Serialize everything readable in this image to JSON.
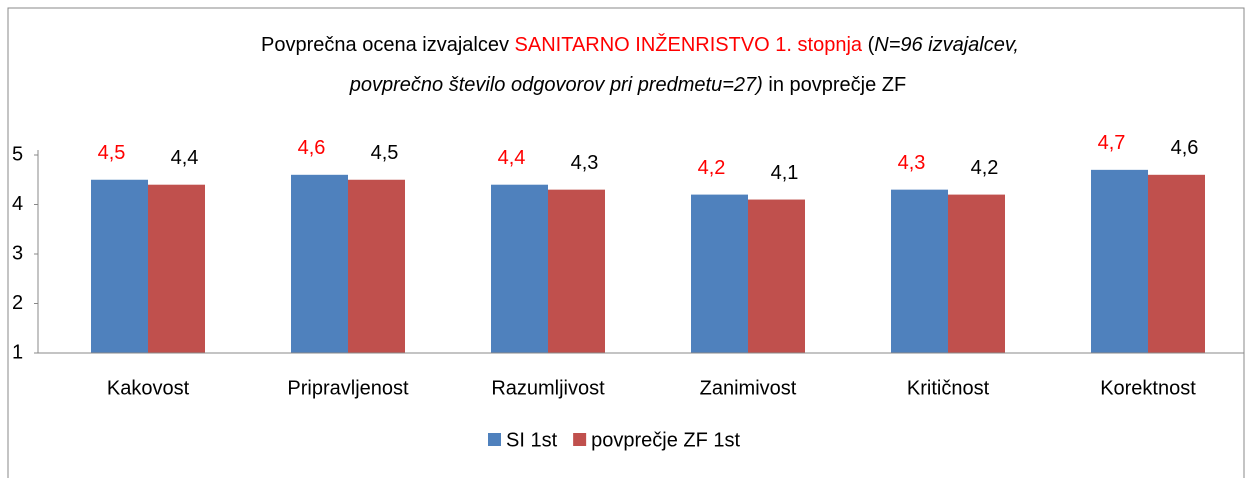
{
  "chart_data": {
    "type": "bar",
    "title": [
      [
        "Povprečna ocena izvajalcev ",
        "SANITARNO INŽENRISTVO 1. stopnja",
        " (",
        "N=96 izvajalcev,"
      ],
      [
        "povprečno število odgovorov pri predmetu=27)",
        " in povprečje ZF"
      ]
    ],
    "categories": [
      "Kakovost",
      "Pripravljenost",
      "Razumljivost",
      "Zanimivost",
      "Kritičnost",
      "Korektnost"
    ],
    "series": [
      {
        "name": "SI 1st",
        "color": "#4f81bd",
        "label_color": "#ff0000",
        "values": [
          4.5,
          4.6,
          4.4,
          4.2,
          4.3,
          4.7
        ],
        "value_labels": [
          "4,5",
          "4,6",
          "4,4",
          "4,2",
          "4,3",
          "4,7"
        ]
      },
      {
        "name": "povprečje ZF 1st",
        "color": "#c0504d",
        "label_color": "#000000",
        "values": [
          4.4,
          4.5,
          4.3,
          4.1,
          4.2,
          4.6
        ],
        "value_labels": [
          "4,4",
          "4,5",
          "4,3",
          "4,1",
          "4,2",
          "4,6"
        ]
      }
    ],
    "ylim": [
      1,
      5
    ],
    "yticks": [
      1,
      2,
      3,
      4,
      5
    ],
    "grid": false,
    "legend": "bottom"
  }
}
